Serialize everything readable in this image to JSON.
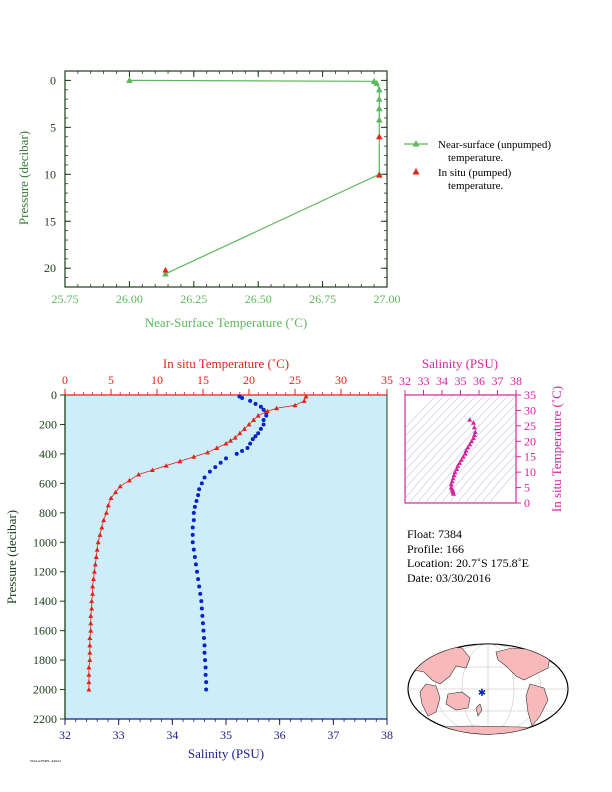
{
  "colors": {
    "green": "#5cb85c",
    "red": "#e2231a",
    "blue": "#0a23c8",
    "magenta": "#d6249f",
    "navy": "#1c1c8a",
    "plot_bg": "#cdeef8",
    "axis_dark": "#1b3d1b"
  },
  "top_chart": {
    "xlabel": "Near-Surface Temperature (˚C)",
    "ylabel": "Pressure (decibar)",
    "xticks": [
      "25.75",
      "26.00",
      "26.25",
      "26.50",
      "26.75",
      "27.00"
    ],
    "yticks": [
      "0",
      "5",
      "10",
      "15",
      "20"
    ],
    "legend": [
      {
        "line1": "Near-surface (unpumped)",
        "line2": "temperature."
      },
      {
        "line1": "In situ (pumped)",
        "line2": "temperature."
      }
    ]
  },
  "bottom_chart": {
    "top_xlabel": "In situ Temperature (˚C)",
    "bottom_xlabel": "Salinity (PSU)",
    "ylabel": "Pressure (decibar)",
    "temp_ticks": [
      "0",
      "5",
      "10",
      "15",
      "20",
      "25",
      "30",
      "35"
    ],
    "sal_ticks": [
      "32",
      "33",
      "34",
      "35",
      "36",
      "37",
      "38"
    ],
    "p_ticks": [
      "0",
      "200",
      "400",
      "600",
      "800",
      "1000",
      "1200",
      "1400",
      "1600",
      "1800",
      "2000",
      "2200"
    ]
  },
  "ts_chart": {
    "xlabel": "Salinity (PSU)",
    "ylabel": "In situ Temperature (˚C)",
    "sal_ticks": [
      "32",
      "33",
      "34",
      "35",
      "36",
      "37",
      "38"
    ],
    "temp_ticks": [
      "0",
      "5",
      "10",
      "15",
      "20",
      "25",
      "30",
      "35"
    ]
  },
  "float_info": {
    "float": "Float:  7384",
    "profile": "Profile:  166",
    "location": "Location:  20.7˚S  175.8˚E",
    "date": "Date:  03/30/2016"
  },
  "chart_data": [
    {
      "type": "line",
      "xlabel": "Near-Surface Temperature (˚C)",
      "ylabel": "Pressure (decibar)",
      "xlim": [
        25.75,
        27.0
      ],
      "ylim": [
        22,
        -1
      ],
      "series": [
        {
          "name": "Near-surface (unpumped) temperature.",
          "points": [
            [
              26.0,
              0.0
            ],
            [
              26.95,
              0.1
            ],
            [
              26.96,
              0.3
            ],
            [
              26.97,
              1.0
            ],
            [
              26.97,
              2.0
            ],
            [
              26.97,
              3.0
            ],
            [
              26.97,
              4.2
            ],
            [
              26.97,
              6.0
            ],
            [
              26.97,
              10.0
            ],
            [
              26.14,
              20.6
            ]
          ]
        },
        {
          "name": "In situ (pumped) temperature.",
          "points": [
            [
              26.97,
              6.0
            ],
            [
              26.97,
              10.1
            ],
            [
              26.14,
              20.2
            ]
          ]
        }
      ]
    },
    {
      "type": "scatter",
      "title": "In situ Temperature (˚C)",
      "xlabel": "Salinity (PSU)",
      "ylabel": "Pressure (decibar)",
      "temp_range": [
        0,
        35
      ],
      "sal_range": [
        32,
        38
      ],
      "pressure_range": [
        0,
        2200
      ],
      "temperature_profile": [
        [
          26.2,
          10
        ],
        [
          26.0,
          40
        ],
        [
          25.0,
          70
        ],
        [
          23.0,
          90
        ],
        [
          22.0,
          110
        ],
        [
          21.0,
          140
        ],
        [
          20.5,
          170
        ],
        [
          20.0,
          200
        ],
        [
          19.5,
          230
        ],
        [
          19.0,
          260
        ],
        [
          18.5,
          290
        ],
        [
          18.0,
          310
        ],
        [
          17.5,
          330
        ],
        [
          16.5,
          360
        ],
        [
          15.5,
          390
        ],
        [
          14.0,
          420
        ],
        [
          12.5,
          450
        ],
        [
          11.0,
          480
        ],
        [
          9.5,
          510
        ],
        [
          8.0,
          540
        ],
        [
          7.0,
          580
        ],
        [
          6.0,
          620
        ],
        [
          5.5,
          660
        ],
        [
          5.0,
          700
        ],
        [
          4.7,
          750
        ],
        [
          4.5,
          800
        ],
        [
          4.2,
          850
        ],
        [
          4.0,
          900
        ],
        [
          3.8,
          950
        ],
        [
          3.6,
          1000
        ],
        [
          3.5,
          1050
        ],
        [
          3.4,
          1100
        ],
        [
          3.3,
          1150
        ],
        [
          3.2,
          1200
        ],
        [
          3.1,
          1250
        ],
        [
          3.0,
          1300
        ],
        [
          3.0,
          1350
        ],
        [
          2.9,
          1400
        ],
        [
          2.9,
          1450
        ],
        [
          2.8,
          1500
        ],
        [
          2.8,
          1550
        ],
        [
          2.8,
          1600
        ],
        [
          2.7,
          1650
        ],
        [
          2.7,
          1700
        ],
        [
          2.7,
          1750
        ],
        [
          2.7,
          1800
        ],
        [
          2.6,
          1850
        ],
        [
          2.6,
          1900
        ],
        [
          2.6,
          1950
        ],
        [
          2.6,
          2000
        ]
      ],
      "salinity_profile": [
        [
          35.25,
          10
        ],
        [
          35.3,
          20
        ],
        [
          35.45,
          40
        ],
        [
          35.55,
          60
        ],
        [
          35.65,
          80
        ],
        [
          35.7,
          100
        ],
        [
          35.75,
          120
        ],
        [
          35.75,
          140
        ],
        [
          35.7,
          170
        ],
        [
          35.7,
          200
        ],
        [
          35.65,
          230
        ],
        [
          35.6,
          260
        ],
        [
          35.55,
          280
        ],
        [
          35.5,
          300
        ],
        [
          35.45,
          330
        ],
        [
          35.4,
          360
        ],
        [
          35.3,
          380
        ],
        [
          35.2,
          400
        ],
        [
          35.0,
          430
        ],
        [
          34.9,
          460
        ],
        [
          34.8,
          490
        ],
        [
          34.7,
          520
        ],
        [
          34.6,
          560
        ],
        [
          34.55,
          600
        ],
        [
          34.5,
          640
        ],
        [
          34.48,
          680
        ],
        [
          34.45,
          720
        ],
        [
          34.42,
          760
        ],
        [
          34.4,
          800
        ],
        [
          34.4,
          850
        ],
        [
          34.38,
          900
        ],
        [
          34.38,
          950
        ],
        [
          34.38,
          1000
        ],
        [
          34.4,
          1050
        ],
        [
          34.42,
          1100
        ],
        [
          34.44,
          1150
        ],
        [
          34.46,
          1200
        ],
        [
          34.48,
          1250
        ],
        [
          34.5,
          1300
        ],
        [
          34.52,
          1350
        ],
        [
          34.54,
          1400
        ],
        [
          34.55,
          1450
        ],
        [
          34.56,
          1500
        ],
        [
          34.57,
          1550
        ],
        [
          34.58,
          1600
        ],
        [
          34.59,
          1650
        ],
        [
          34.6,
          1700
        ],
        [
          34.6,
          1750
        ],
        [
          34.61,
          1800
        ],
        [
          34.62,
          1850
        ],
        [
          34.62,
          1900
        ],
        [
          34.63,
          1950
        ],
        [
          34.63,
          2000
        ]
      ]
    },
    {
      "type": "scatter",
      "xlabel": "Salinity (PSU)",
      "ylabel": "In situ Temperature (˚C)",
      "xlim": [
        32,
        38
      ],
      "ylim": [
        0,
        35
      ],
      "points": [
        [
          35.5,
          27
        ],
        [
          35.7,
          26
        ],
        [
          35.75,
          24.5
        ],
        [
          35.8,
          23
        ],
        [
          35.75,
          22
        ],
        [
          35.7,
          21
        ],
        [
          35.6,
          20
        ],
        [
          35.5,
          19
        ],
        [
          35.4,
          18
        ],
        [
          35.3,
          17
        ],
        [
          35.25,
          16
        ],
        [
          35.15,
          15
        ],
        [
          35.05,
          14
        ],
        [
          34.95,
          13
        ],
        [
          34.85,
          12
        ],
        [
          34.8,
          11
        ],
        [
          34.7,
          10
        ],
        [
          34.65,
          9
        ],
        [
          34.6,
          8
        ],
        [
          34.55,
          7
        ],
        [
          34.5,
          6
        ],
        [
          34.5,
          5
        ],
        [
          34.55,
          4.5
        ],
        [
          34.58,
          4
        ],
        [
          34.6,
          3.5
        ],
        [
          34.62,
          3
        ]
      ]
    }
  ]
}
